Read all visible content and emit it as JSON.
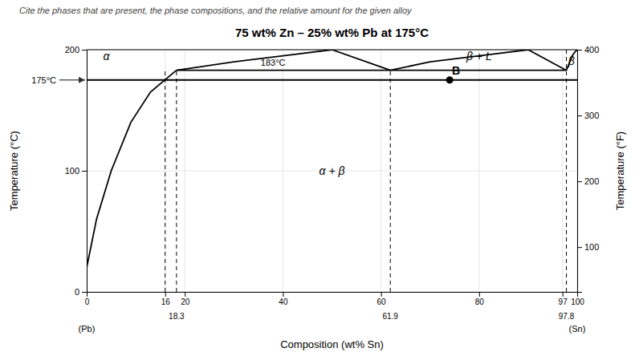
{
  "chart_data": {
    "type": "line",
    "title": "75 wt% Zn – 25% wt% Pb at 175°C",
    "subtitle": "Cite the phases that are present, the phase compositions, and the relative amount for the given alloy",
    "x_label": "Composition (wt% Sn)",
    "y_label": "Temperature (°C)",
    "y2_label": "Temperature (°F)",
    "xlim": [
      0,
      100
    ],
    "xticks": [
      0,
      16,
      20,
      40,
      60,
      80,
      97,
      100
    ],
    "ylim": [
      0,
      200
    ],
    "yticks": [
      0,
      100,
      200
    ],
    "y2lim": [
      32,
      400
    ],
    "y2ticks": [
      100,
      200,
      300,
      400
    ],
    "grid": true,
    "series": [
      {
        "x": [
          0,
          2,
          5,
          9,
          13,
          18.3
        ],
        "values": [
          20,
          60,
          100,
          140,
          165,
          183
        ],
        "color": "#000000",
        "line_style": "solid"
      },
      {
        "x": [
          97.8,
          98.5,
          99,
          99.5,
          100
        ],
        "values": [
          183,
          190,
          195,
          198,
          200
        ],
        "color": "#000000",
        "line_style": "solid"
      },
      {
        "x": [
          18.3,
          30,
          40,
          50,
          61.9
        ],
        "values": [
          183,
          190,
          195,
          200,
          183
        ],
        "color": "#000000",
        "line_style": "solid"
      },
      {
        "x": [
          61.9,
          70,
          80,
          90,
          97.8
        ],
        "values": [
          183,
          190,
          195,
          200,
          183
        ],
        "color": "#000000",
        "line_style": "solid"
      },
      {
        "x": [
          18.3,
          97.8
        ],
        "values": [
          183,
          183
        ],
        "color": "#000000",
        "line_style": "solid"
      },
      {
        "x": [
          16,
          16
        ],
        "values": [
          0,
          183
        ],
        "color": "#000000",
        "line_style": "dashed"
      },
      {
        "x": [
          18.3,
          18.3
        ],
        "values": [
          0,
          183
        ],
        "color": "#000000",
        "line_style": "dashed"
      },
      {
        "x": [
          61.9,
          61.9
        ],
        "values": [
          0,
          183
        ],
        "color": "#000000",
        "line_style": "dashed"
      },
      {
        "x": [
          97.8,
          97.8
        ],
        "values": [
          0,
          200
        ],
        "color": "#000000",
        "line_style": "dashed"
      },
      {
        "x": [
          0,
          100
        ],
        "values": [
          175,
          175
        ],
        "color": "#000000",
        "line_style": "solid"
      },
      {
        "type": "scatter",
        "x": [
          74
        ],
        "values": [
          175
        ],
        "color": "#000000",
        "marker": "circle",
        "point_labels": [
          "B"
        ]
      }
    ],
    "region_labels": [
      {
        "text": "α",
        "x": 4,
        "y": 195
      },
      {
        "text": "β",
        "x": 98.8,
        "y": 191
      },
      {
        "text": "α + β",
        "x": 50,
        "y": 100
      },
      {
        "text": "β + L",
        "x": 80,
        "y": 195
      }
    ],
    "annotations": [
      {
        "text": "183°C",
        "x": 38,
        "y": 186
      }
    ],
    "arrow_annotations": [
      {
        "text": "175°C",
        "x": 0,
        "y": 175
      }
    ],
    "composition_ticks": [
      18.3,
      61.9,
      97.8
    ],
    "end_labels": [
      {
        "value": 0,
        "label": "(Pb)"
      },
      {
        "value": 100,
        "label": "(Sn)"
      }
    ]
  }
}
